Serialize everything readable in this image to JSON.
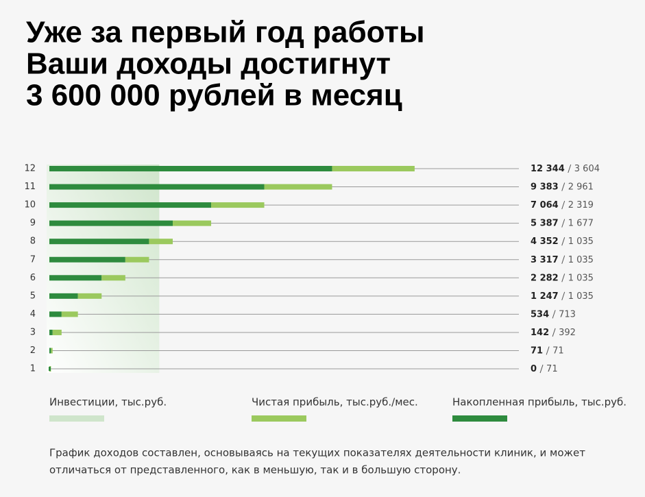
{
  "chart_data": {
    "type": "bar",
    "orientation": "horizontal",
    "stacked": true,
    "title": [
      "Уже за первый год работы",
      "Ваши доходы достигнут",
      "3 600 000 рублей в месяц"
    ],
    "categories": [
      "1",
      "2",
      "3",
      "4",
      "5",
      "6",
      "7",
      "8",
      "9",
      "10",
      "11",
      "12"
    ],
    "xlim": [
      0,
      20500
    ],
    "investments": {
      "name": "Инвестиции, тыс.руб.",
      "color": "#cfe5cb",
      "value": 4800
    },
    "series": [
      {
        "name": "Накопленная прибыль, тыс.руб.",
        "color": "#2e8b3e",
        "values": [
          0,
          71,
          142,
          534,
          1247,
          2282,
          3317,
          4352,
          5387,
          7064,
          9383,
          12344
        ],
        "value_labels": [
          "0",
          "71",
          "142",
          "534",
          "1 247",
          "2 282",
          "3 317",
          "4 352",
          "5 387",
          "7 064",
          "9 383",
          "12 344"
        ]
      },
      {
        "name": "Чистая прибыль, тыс.руб./мес.",
        "color": "#9bc95e",
        "values": [
          71,
          71,
          392,
          713,
          1035,
          1035,
          1035,
          1035,
          1677,
          2319,
          2961,
          3604
        ],
        "value_labels": [
          "71",
          "71",
          "392",
          "713",
          "1 035",
          "1 035",
          "1 035",
          "1 035",
          "1 677",
          "2 319",
          "2 961",
          "3 604"
        ]
      }
    ],
    "legend_order": [
      1,
      0
    ],
    "note": [
      "График доходов составлен, основываясь на текущих показателях деятельности клиник, и может",
      "отличаться от представленного, как в меньшую, так и в большую сторону."
    ]
  }
}
